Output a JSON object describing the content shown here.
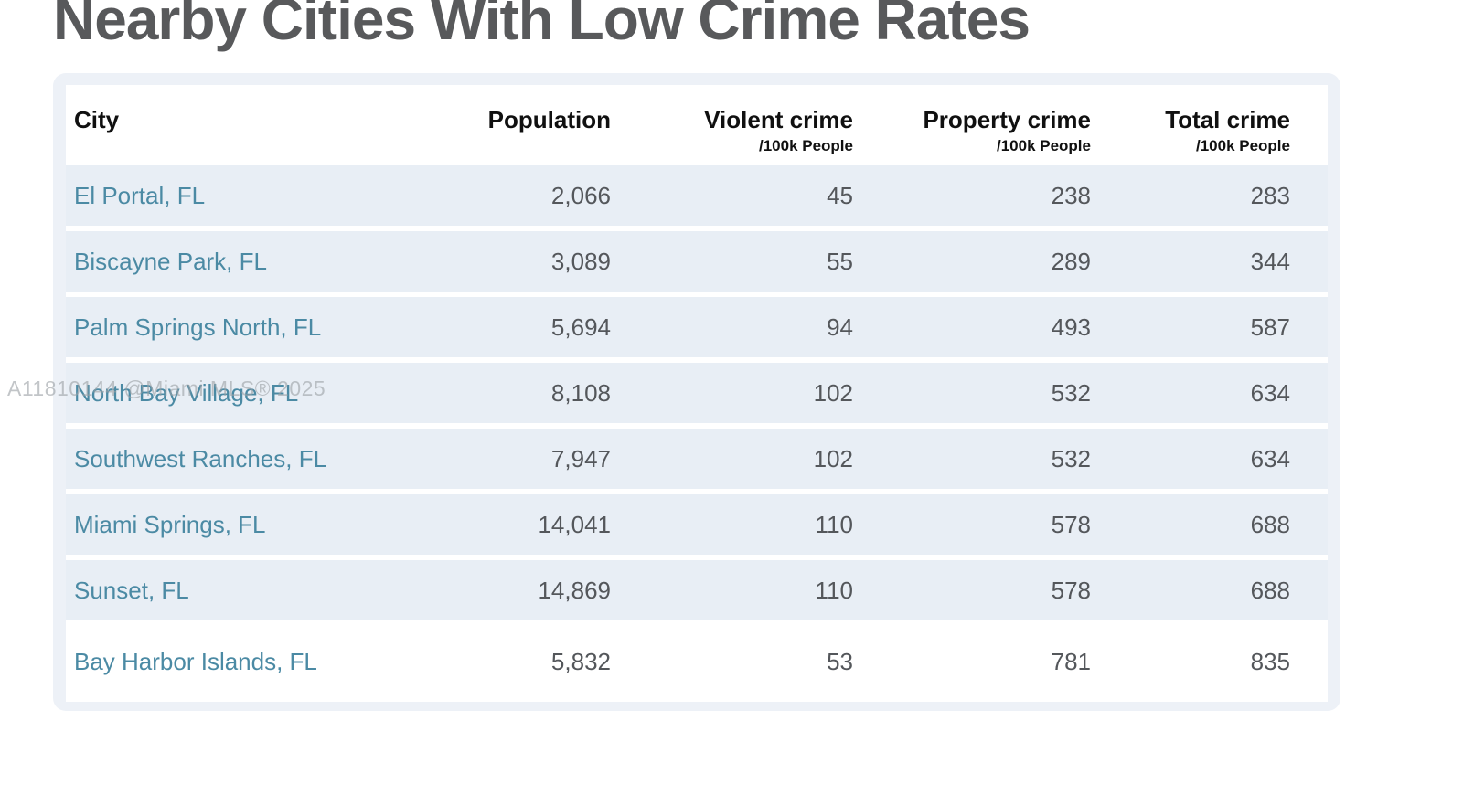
{
  "page_title": "Nearby Cities With Low Crime Rates",
  "watermark": "A11810144 @Miami MLS® 2025",
  "colors": {
    "title_text": "#58595b",
    "header_text": "#101010",
    "number_text": "#54575b",
    "city_link": "#4b8aa4",
    "row_band": "#e8eef5",
    "card_background": "#edf1f7",
    "watermark_gray": "#9ba0a5"
  },
  "table": {
    "columns": [
      {
        "label": "City",
        "sublabel": ""
      },
      {
        "label": "Population",
        "sublabel": ""
      },
      {
        "label": "Violent crime",
        "sublabel": "/100k People"
      },
      {
        "label": "Property crime",
        "sublabel": "/100k People"
      },
      {
        "label": "Total crime",
        "sublabel": "/100k People"
      }
    ],
    "rows": [
      {
        "city": "El Portal, FL",
        "population": "2,066",
        "violent": "45",
        "property": "238",
        "total": "283"
      },
      {
        "city": "Biscayne Park, FL",
        "population": "3,089",
        "violent": "55",
        "property": "289",
        "total": "344"
      },
      {
        "city": "Palm Springs North, FL",
        "population": "5,694",
        "violent": "94",
        "property": "493",
        "total": "587"
      },
      {
        "city": "North Bay Village, FL",
        "population": "8,108",
        "violent": "102",
        "property": "532",
        "total": "634"
      },
      {
        "city": "Southwest Ranches, FL",
        "population": "7,947",
        "violent": "102",
        "property": "532",
        "total": "634"
      },
      {
        "city": "Miami Springs, FL",
        "population": "14,041",
        "violent": "110",
        "property": "578",
        "total": "688"
      },
      {
        "city": "Sunset, FL",
        "population": "14,869",
        "violent": "110",
        "property": "578",
        "total": "688"
      },
      {
        "city": "Bay Harbor Islands, FL",
        "population": "5,832",
        "violent": "53",
        "property": "781",
        "total": "835"
      }
    ]
  }
}
